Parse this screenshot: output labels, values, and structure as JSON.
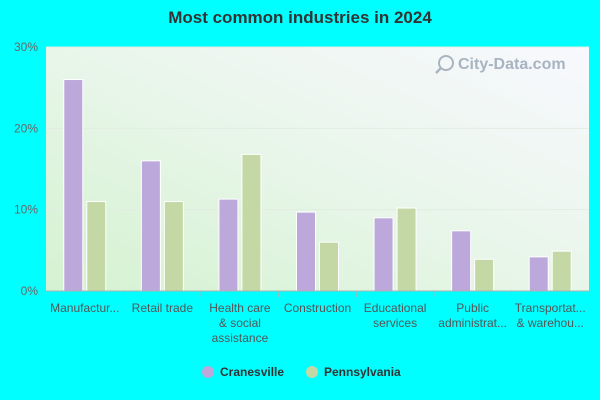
{
  "chart_data": {
    "type": "bar",
    "title": "Most common industries in 2024",
    "categories": [
      [
        "Manufactur..."
      ],
      [
        "Retail trade"
      ],
      [
        "Health care",
        "& social",
        "assistance"
      ],
      [
        "Construction"
      ],
      [
        "Educational",
        "services"
      ],
      [
        "Public",
        "administrat..."
      ],
      [
        "Transportat...",
        "& warehou..."
      ]
    ],
    "series": [
      {
        "name": "Cranesville",
        "color": "#bca8da",
        "values": [
          26.0,
          16.0,
          11.3,
          9.7,
          9.0,
          7.4,
          4.2
        ]
      },
      {
        "name": "Pennsylvania",
        "color": "#c4d8a6",
        "values": [
          11.0,
          11.0,
          16.8,
          6.0,
          10.2,
          3.9,
          4.9
        ]
      }
    ],
    "y_ticks": [
      "0%",
      "10%",
      "20%",
      "30%"
    ],
    "ylim": [
      0,
      30
    ],
    "grid": true,
    "legend_position": "bottom-center",
    "watermark": "City-Data.com"
  }
}
